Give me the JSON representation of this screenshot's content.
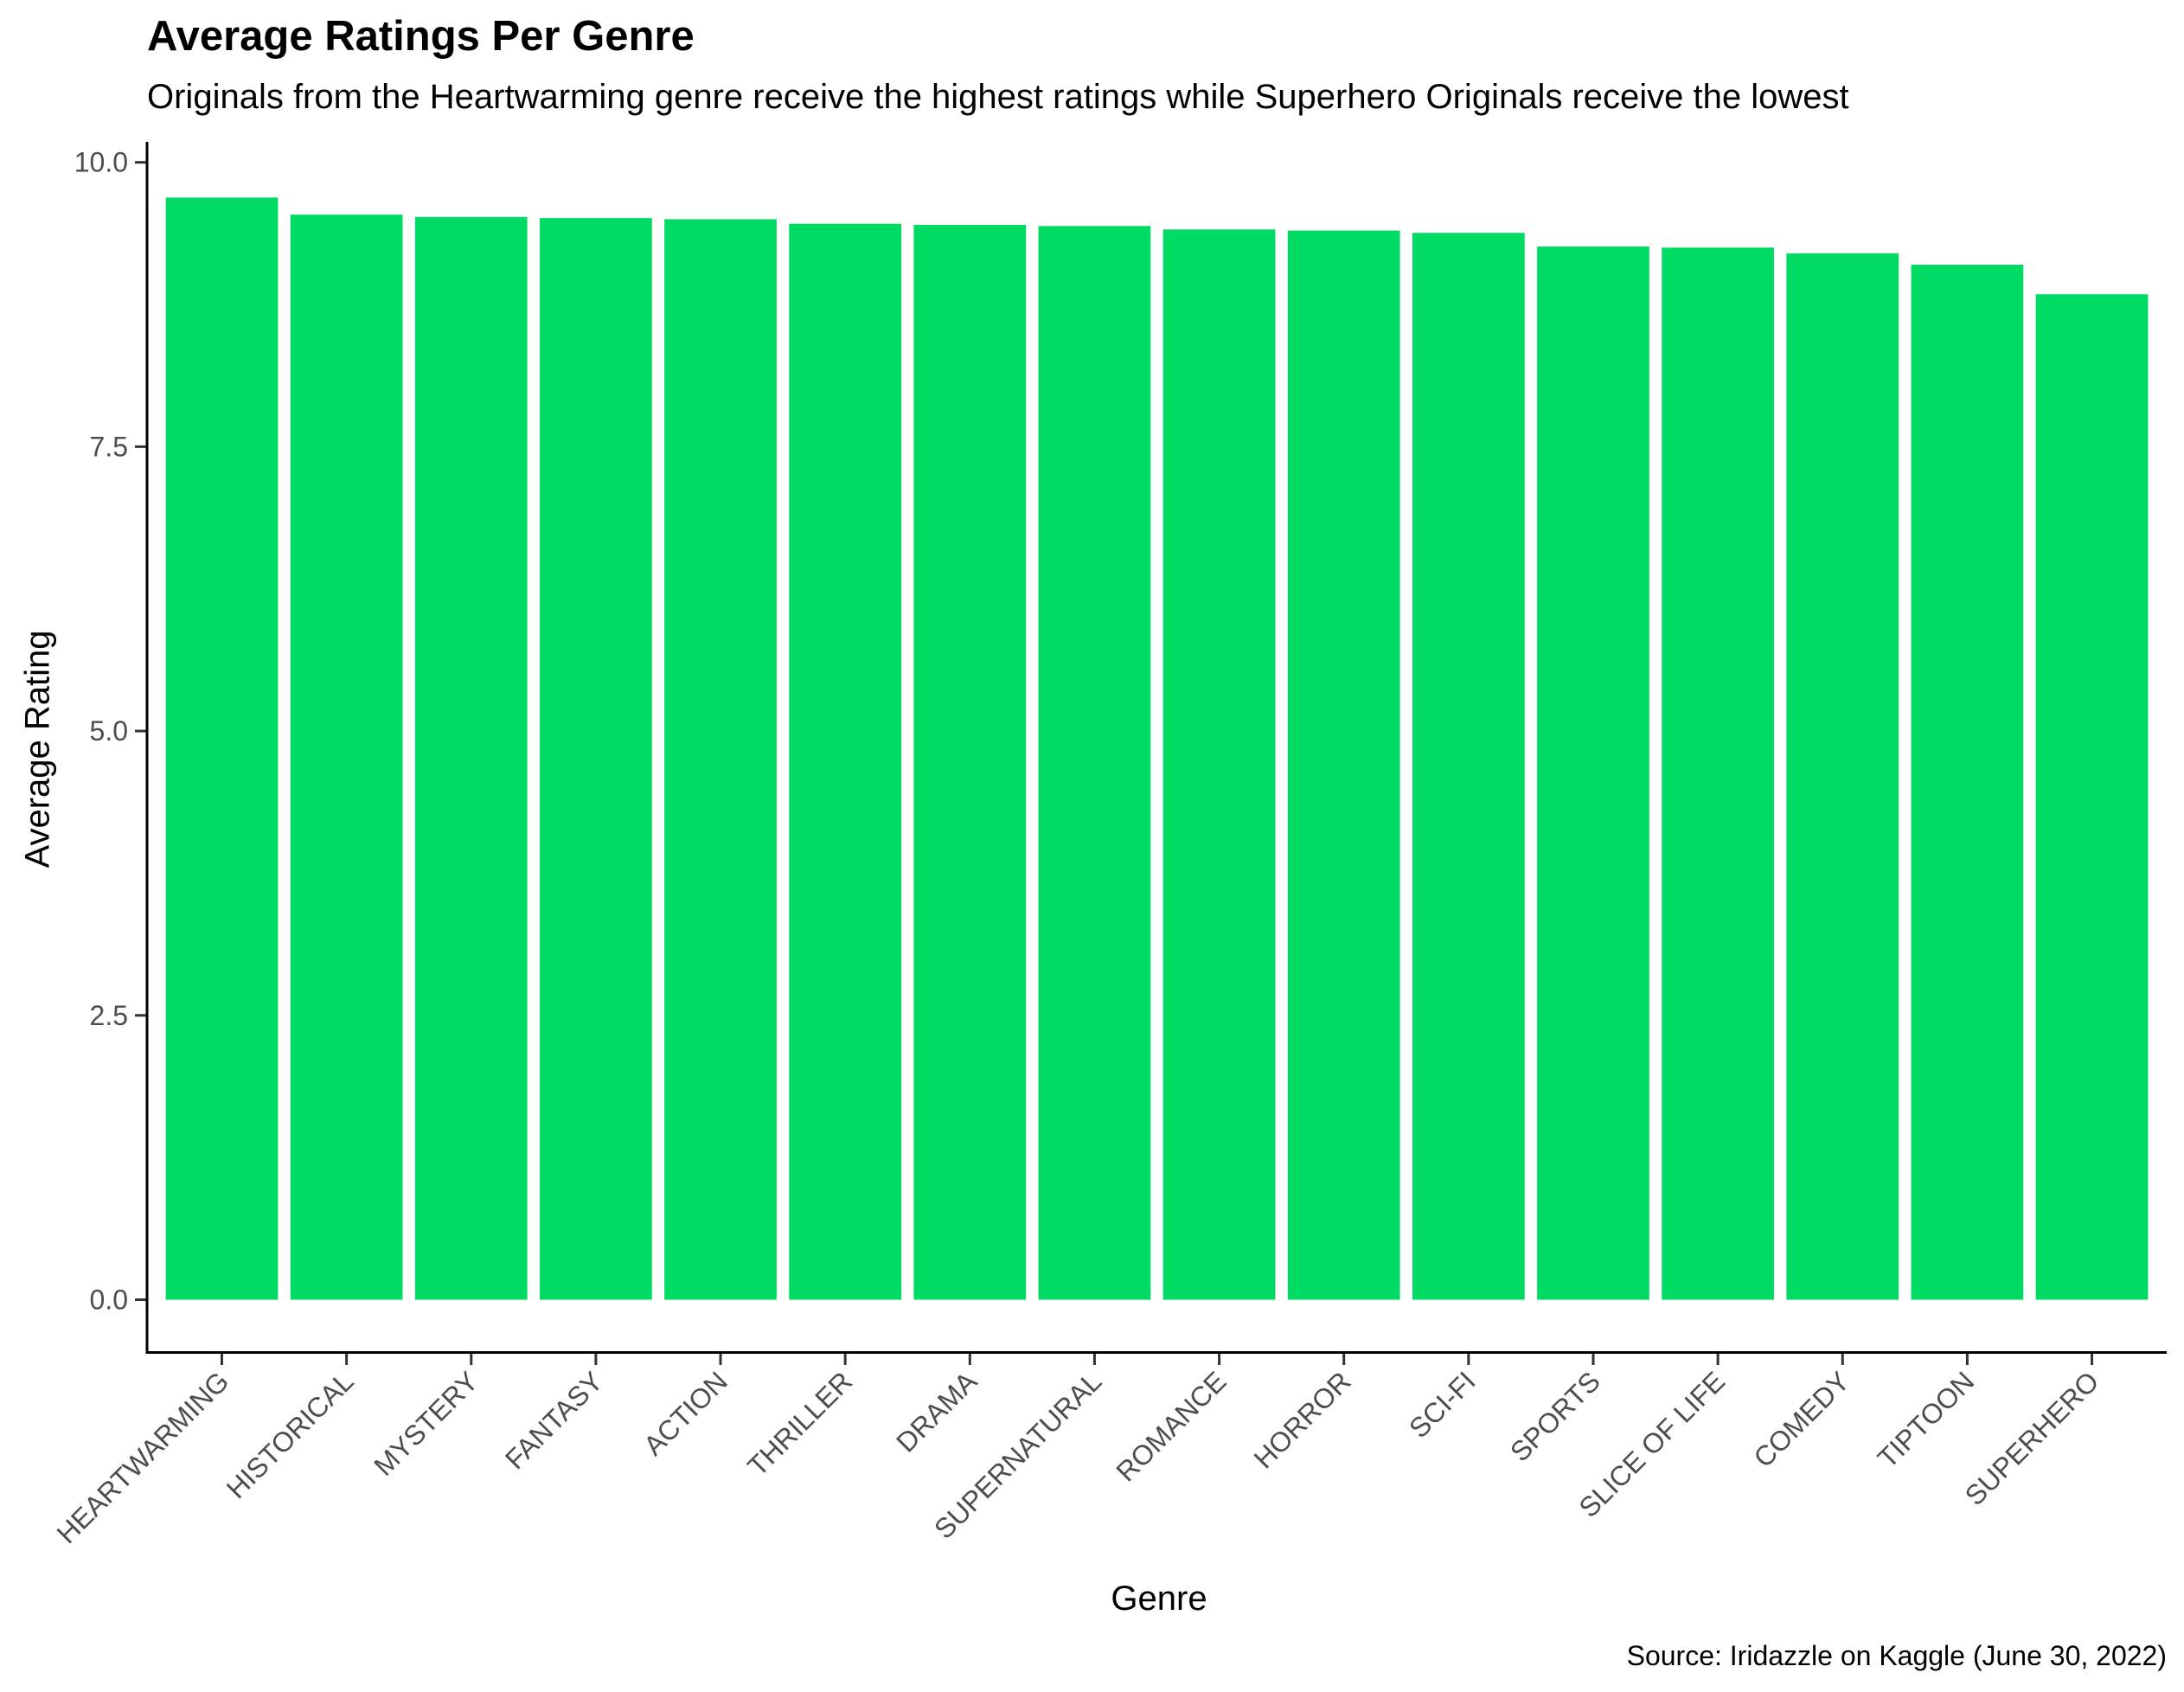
{
  "chart_data": {
    "type": "bar",
    "title": "Average Ratings Per Genre",
    "subtitle": "Originals from the Heartwarming genre receive the highest ratings while Superhero Originals receive the lowest",
    "caption": "Source: Iridazzle on Kaggle (June 30, 2022)",
    "xlabel": "Genre",
    "ylabel": "Average Rating",
    "categories": [
      "HEARTWARMING",
      "HISTORICAL",
      "MYSTERY",
      "FANTASY",
      "ACTION",
      "THRILLER",
      "DRAMA",
      "SUPERNATURAL",
      "ROMANCE",
      "HORROR",
      "SCI-FI",
      "SPORTS",
      "SLICE OF LIFE",
      "COMEDY",
      "TIPTOON",
      "SUPERHERO"
    ],
    "values": [
      9.69,
      9.54,
      9.52,
      9.51,
      9.5,
      9.46,
      9.45,
      9.44,
      9.41,
      9.4,
      9.38,
      9.26,
      9.25,
      9.2,
      9.1,
      8.84
    ],
    "ylim": [
      -0.46,
      10.18
    ],
    "yticks": [
      "0.0",
      "2.5",
      "5.0",
      "7.5",
      "10.0"
    ],
    "bar_color": "#00DB64",
    "grid": false,
    "legend": "none"
  }
}
